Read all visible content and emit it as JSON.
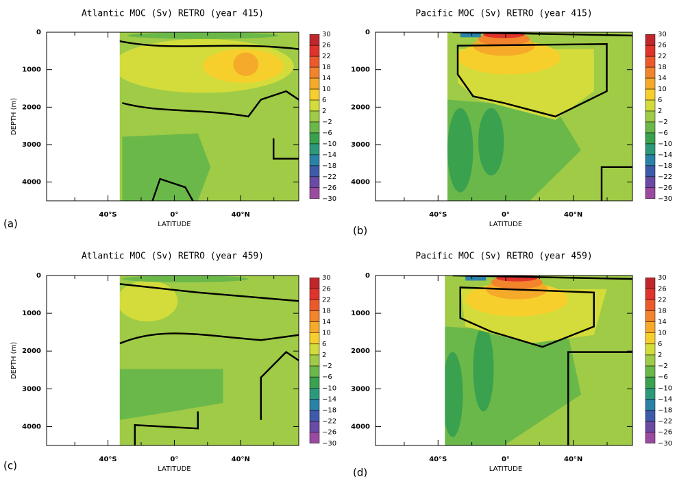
{
  "chart_data": [
    {
      "type": "contour",
      "title": "Atlantic MOC (Sv) RETRO (year 415)",
      "panel_label": "(a)",
      "xlabel": "LATITUDE",
      "ylabel": "DEPTH (m)",
      "xlim": [
        -77,
        75
      ],
      "xticks": [
        {
          "value": -40,
          "label": "40°S"
        },
        {
          "value": 0,
          "label": "0°"
        },
        {
          "value": 40,
          "label": "40°N"
        }
      ],
      "xminorticks": [
        -60,
        -20,
        20,
        60
      ],
      "ylim": [
        0,
        4500
      ],
      "y_inverted": true,
      "yticks": [
        0,
        1000,
        2000,
        3000,
        4000
      ],
      "levels": [
        30,
        26,
        22,
        18,
        14,
        10,
        6,
        2,
        {
          "value": -2,
          "label": "−2"
        },
        {
          "value": -6,
          "label": "−6"
        },
        {
          "value": -10,
          "label": "−10"
        },
        {
          "value": -14,
          "label": "−14"
        },
        {
          "value": -18,
          "label": "−18"
        },
        {
          "value": -22,
          "label": "−22"
        },
        {
          "value": -26,
          "label": "−26"
        },
        {
          "value": -30,
          "label": "−30"
        }
      ],
      "colors": [
        "#c0272d",
        "#e0332b",
        "#ec5a2c",
        "#f2842c",
        "#f6aa2a",
        "#f7cf2c",
        "#d3dc3a",
        "#9fcb47",
        "#6bb84a",
        "#3aa14f",
        "#2c9a7a",
        "#2a82a8",
        "#3d5ba9",
        "#6a4aa2",
        "#9a4aa0"
      ]
    },
    {
      "type": "contour",
      "title": "Pacific MOC (Sv) RETRO (year 415)",
      "panel_label": "(b)",
      "xlabel": "LATITUDE",
      "xlim": [
        -77,
        75
      ],
      "xticks": [
        {
          "value": -40,
          "label": "40°S"
        },
        {
          "value": 0,
          "label": "0°"
        },
        {
          "value": 40,
          "label": "40°N"
        }
      ],
      "xminorticks": [
        -60,
        -20,
        20,
        60
      ],
      "ylim": [
        0,
        4500
      ],
      "y_inverted": true,
      "yticks": [
        0,
        1000,
        2000,
        3000,
        4000
      ],
      "levels": [
        30,
        26,
        22,
        18,
        14,
        10,
        6,
        2,
        {
          "value": -2,
          "label": "−2"
        },
        {
          "value": -6,
          "label": "−6"
        },
        {
          "value": -10,
          "label": "−10"
        },
        {
          "value": -14,
          "label": "−14"
        },
        {
          "value": -18,
          "label": "−18"
        },
        {
          "value": -22,
          "label": "−22"
        },
        {
          "value": -26,
          "label": "−26"
        },
        {
          "value": -30,
          "label": "−30"
        }
      ],
      "colors": [
        "#c0272d",
        "#e0332b",
        "#ec5a2c",
        "#f2842c",
        "#f6aa2a",
        "#f7cf2c",
        "#d3dc3a",
        "#9fcb47",
        "#6bb84a",
        "#3aa14f",
        "#2c9a7a",
        "#2a82a8",
        "#3d5ba9",
        "#6a4aa2",
        "#9a4aa0"
      ]
    },
    {
      "type": "contour",
      "title": "Atlantic MOC (Sv) RETRO (year 459)",
      "panel_label": "(c)",
      "xlabel": "LATITUDE",
      "ylabel": "DEPTH (m)",
      "xlim": [
        -77,
        75
      ],
      "xticks": [
        {
          "value": -40,
          "label": "40°S"
        },
        {
          "value": 0,
          "label": "0°"
        },
        {
          "value": 40,
          "label": "40°N"
        }
      ],
      "xminorticks": [
        -60,
        -20,
        20,
        60
      ],
      "ylim": [
        0,
        4500
      ],
      "y_inverted": true,
      "yticks": [
        0,
        1000,
        2000,
        3000,
        4000
      ],
      "levels": [
        30,
        26,
        22,
        18,
        14,
        10,
        6,
        2,
        {
          "value": -2,
          "label": "−2"
        },
        {
          "value": -6,
          "label": "−6"
        },
        {
          "value": -10,
          "label": "−10"
        },
        {
          "value": -14,
          "label": "−14"
        },
        {
          "value": -18,
          "label": "−18"
        },
        {
          "value": -22,
          "label": "−22"
        },
        {
          "value": -26,
          "label": "−26"
        },
        {
          "value": -30,
          "label": "−30"
        }
      ],
      "colors": [
        "#c0272d",
        "#e0332b",
        "#ec5a2c",
        "#f2842c",
        "#f6aa2a",
        "#f7cf2c",
        "#d3dc3a",
        "#9fcb47",
        "#6bb84a",
        "#3aa14f",
        "#2c9a7a",
        "#2a82a8",
        "#3d5ba9",
        "#6a4aa2",
        "#9a4aa0"
      ]
    },
    {
      "type": "contour",
      "title": "Pacific MOC (Sv) RETRO (year 459)",
      "panel_label": "(d)",
      "xlabel": "LATITUDE",
      "xlim": [
        -77,
        75
      ],
      "xticks": [
        {
          "value": -40,
          "label": "40°S"
        },
        {
          "value": 0,
          "label": "0°"
        },
        {
          "value": 40,
          "label": "40°N"
        }
      ],
      "xminorticks": [
        -60,
        -20,
        20,
        60
      ],
      "ylim": [
        0,
        4500
      ],
      "y_inverted": true,
      "yticks": [
        0,
        1000,
        2000,
        3000,
        4000
      ],
      "levels": [
        30,
        26,
        22,
        18,
        14,
        10,
        6,
        2,
        {
          "value": -2,
          "label": "−2"
        },
        {
          "value": -6,
          "label": "−6"
        },
        {
          "value": -10,
          "label": "−10"
        },
        {
          "value": -14,
          "label": "−14"
        },
        {
          "value": -18,
          "label": "−18"
        },
        {
          "value": -22,
          "label": "−22"
        },
        {
          "value": -26,
          "label": "−26"
        },
        {
          "value": -30,
          "label": "−30"
        }
      ],
      "colors": [
        "#c0272d",
        "#e0332b",
        "#ec5a2c",
        "#f2842c",
        "#f6aa2a",
        "#f7cf2c",
        "#d3dc3a",
        "#9fcb47",
        "#6bb84a",
        "#3aa14f",
        "#2c9a7a",
        "#2a82a8",
        "#3d5ba9",
        "#6a4aa2",
        "#9a4aa0"
      ]
    }
  ]
}
